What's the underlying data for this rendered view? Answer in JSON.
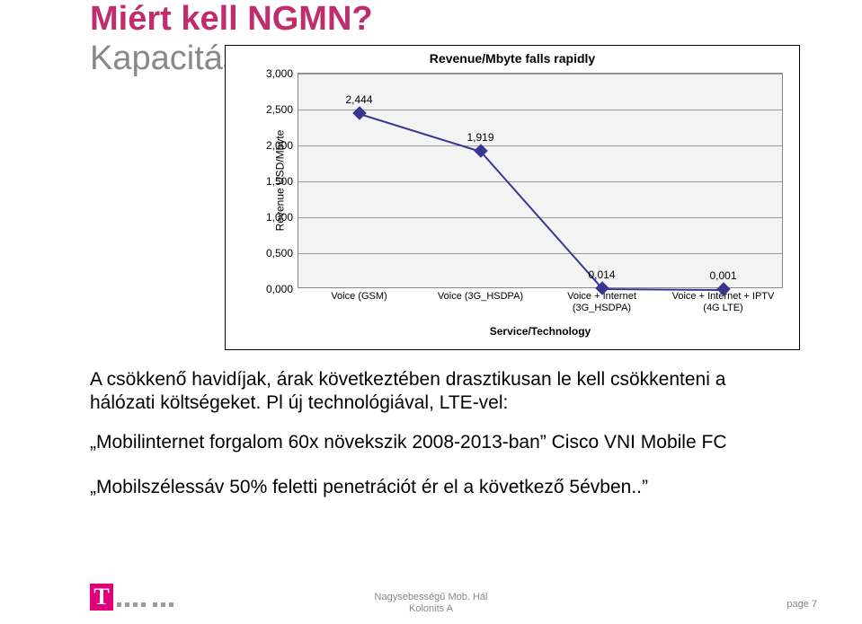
{
  "titles": {
    "line1": "Miért kell NGMN?",
    "line2": "Kapacitás!"
  },
  "chart": {
    "type": "line",
    "title": "Revenue/Mbyte falls rapidly",
    "ylabel": "Revenue USD/Mbyte",
    "xlabel": "Service/Technology",
    "background_color": "#f3f3f3",
    "grid_color": "#9d9d9d",
    "series_color": "#373790",
    "label_fontsize": 12,
    "title_fontsize": 14,
    "marker_style": "diamond",
    "marker_size": 11,
    "line_width": 2,
    "ylim": [
      0.0,
      3.0
    ],
    "ytick_step": 0.5,
    "yticks": [
      "0,000",
      "0,500",
      "1,000",
      "1,500",
      "2,000",
      "2,500",
      "3,000"
    ],
    "categories": [
      "Voice (GSM)",
      "Voice (3G_HSDPA)",
      "Voice + Internet (3G_HSDPA)",
      "Voice + Internet + IPTV (4G LTE)"
    ],
    "values": [
      2.444,
      1.919,
      0.014,
      0.001
    ],
    "value_labels": [
      "2,444",
      "1,919",
      "0,014",
      "0,001"
    ]
  },
  "body": {
    "p1": "A csökkenő havidíjak, árak következtében drasztikusan le kell csökkenteni a hálózati költségeket. Pl új technológiával, LTE-vel:",
    "p2": "„Mobilinternet forgalom 60x növekszik 2008-2013-ban” Cisco VNI Mobile FC",
    "p3": "„Mobilszélessáv 50% feletti penetrációt ér el a következő 5évben..”"
  },
  "footer": {
    "center_line1": "Nagysebességű Mob. Hál",
    "center_line2": "Kolonits A",
    "page": "page 7"
  }
}
